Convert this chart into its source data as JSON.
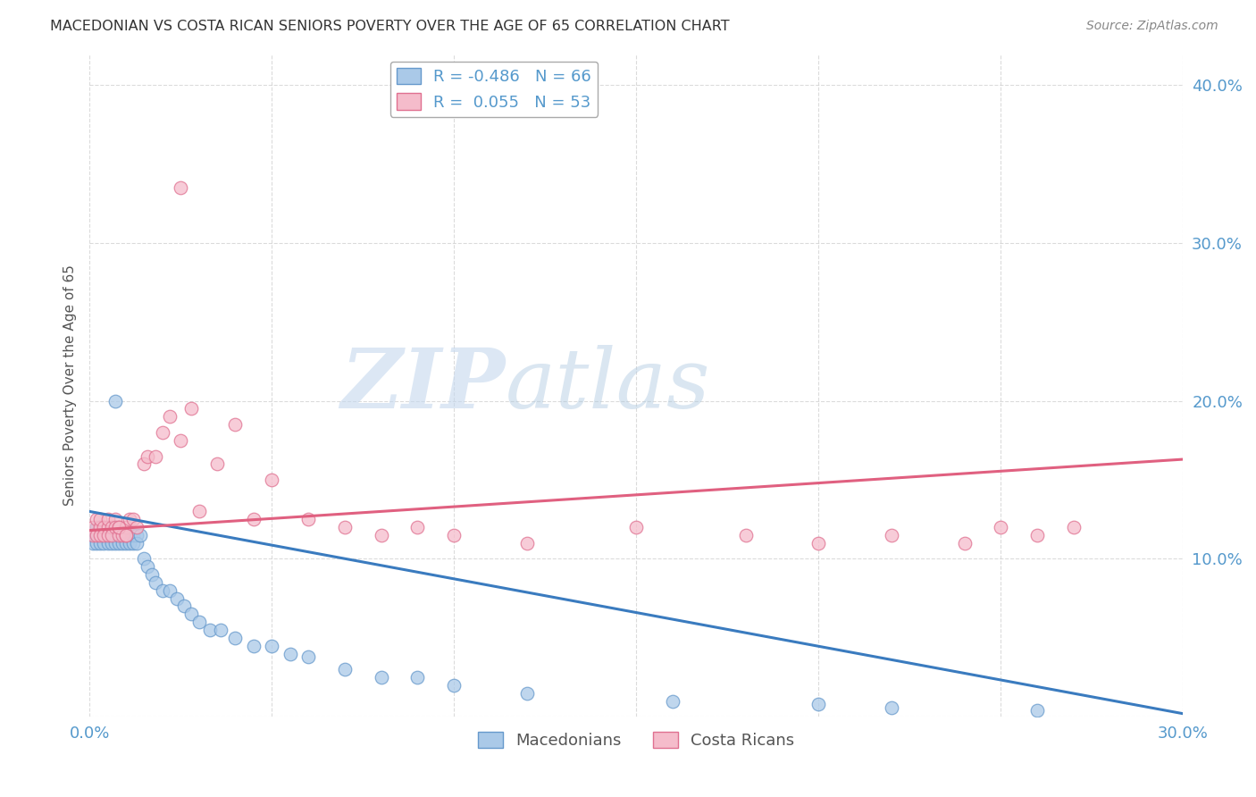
{
  "title": "MACEDONIAN VS COSTA RICAN SENIORS POVERTY OVER THE AGE OF 65 CORRELATION CHART",
  "source": "Source: ZipAtlas.com",
  "ylabel": "Seniors Poverty Over the Age of 65",
  "xlim": [
    0.0,
    0.3
  ],
  "ylim": [
    0.0,
    0.42
  ],
  "macedonian_R": -0.486,
  "macedonian_N": 66,
  "costa_rican_R": 0.055,
  "costa_rican_N": 53,
  "macedonian_color": "#aac9e8",
  "macedonian_edge_color": "#6699cc",
  "costa_rican_color": "#f5bccb",
  "costa_rican_edge_color": "#e07090",
  "trend_macedonian_color": "#3a7bbf",
  "trend_costa_rican_color": "#e06080",
  "background_color": "#ffffff",
  "grid_color": "#cccccc",
  "mac_trend_x0": 0.0,
  "mac_trend_y0": 0.13,
  "mac_trend_x1": 0.3,
  "mac_trend_y1": 0.002,
  "cr_trend_x0": 0.0,
  "cr_trend_y0": 0.118,
  "cr_trend_x1": 0.3,
  "cr_trend_y1": 0.163,
  "legend_mac_label": "R = -0.486   N = 66",
  "legend_cr_label": "R =  0.055   N = 53",
  "legend_mac_bottom": "Macedonians",
  "legend_cr_bottom": "Costa Ricans",
  "tick_color": "#5599cc",
  "title_color": "#333333",
  "source_color": "#888888",
  "ylabel_color": "#555555",
  "mac_x": [
    0.001,
    0.001,
    0.002,
    0.002,
    0.002,
    0.002,
    0.002,
    0.003,
    0.003,
    0.003,
    0.003,
    0.003,
    0.004,
    0.004,
    0.004,
    0.004,
    0.005,
    0.005,
    0.005,
    0.006,
    0.006,
    0.006,
    0.007,
    0.007,
    0.007,
    0.007,
    0.008,
    0.008,
    0.008,
    0.009,
    0.009,
    0.01,
    0.01,
    0.01,
    0.011,
    0.012,
    0.012,
    0.013,
    0.013,
    0.014,
    0.015,
    0.016,
    0.017,
    0.018,
    0.02,
    0.022,
    0.024,
    0.026,
    0.028,
    0.03,
    0.033,
    0.036,
    0.04,
    0.045,
    0.05,
    0.055,
    0.06,
    0.07,
    0.08,
    0.09,
    0.1,
    0.12,
    0.16,
    0.2,
    0.22,
    0.26
  ],
  "mac_y": [
    0.115,
    0.11,
    0.115,
    0.12,
    0.115,
    0.11,
    0.12,
    0.115,
    0.12,
    0.115,
    0.11,
    0.115,
    0.115,
    0.12,
    0.11,
    0.115,
    0.11,
    0.115,
    0.115,
    0.115,
    0.11,
    0.115,
    0.115,
    0.11,
    0.115,
    0.2,
    0.115,
    0.11,
    0.115,
    0.115,
    0.11,
    0.115,
    0.115,
    0.11,
    0.11,
    0.11,
    0.115,
    0.115,
    0.11,
    0.115,
    0.1,
    0.095,
    0.09,
    0.085,
    0.08,
    0.08,
    0.075,
    0.07,
    0.065,
    0.06,
    0.055,
    0.055,
    0.05,
    0.045,
    0.045,
    0.04,
    0.038,
    0.03,
    0.025,
    0.025,
    0.02,
    0.015,
    0.01,
    0.008,
    0.006,
    0.004
  ],
  "cr_x": [
    0.001,
    0.001,
    0.002,
    0.002,
    0.003,
    0.003,
    0.003,
    0.004,
    0.004,
    0.005,
    0.005,
    0.005,
    0.006,
    0.006,
    0.007,
    0.007,
    0.008,
    0.008,
    0.009,
    0.01,
    0.01,
    0.011,
    0.012,
    0.013,
    0.015,
    0.016,
    0.018,
    0.02,
    0.022,
    0.025,
    0.028,
    0.03,
    0.035,
    0.04,
    0.045,
    0.05,
    0.06,
    0.07,
    0.08,
    0.09,
    0.1,
    0.12,
    0.15,
    0.18,
    0.2,
    0.22,
    0.24,
    0.25,
    0.26,
    0.27,
    0.025,
    0.008,
    0.01
  ],
  "cr_y": [
    0.12,
    0.115,
    0.125,
    0.115,
    0.12,
    0.115,
    0.125,
    0.12,
    0.115,
    0.12,
    0.125,
    0.115,
    0.12,
    0.115,
    0.125,
    0.12,
    0.115,
    0.12,
    0.115,
    0.12,
    0.115,
    0.125,
    0.125,
    0.12,
    0.16,
    0.165,
    0.165,
    0.18,
    0.19,
    0.175,
    0.195,
    0.13,
    0.16,
    0.185,
    0.125,
    0.15,
    0.125,
    0.12,
    0.115,
    0.12,
    0.115,
    0.11,
    0.12,
    0.115,
    0.11,
    0.115,
    0.11,
    0.12,
    0.115,
    0.12,
    0.335,
    0.12,
    0.115
  ]
}
